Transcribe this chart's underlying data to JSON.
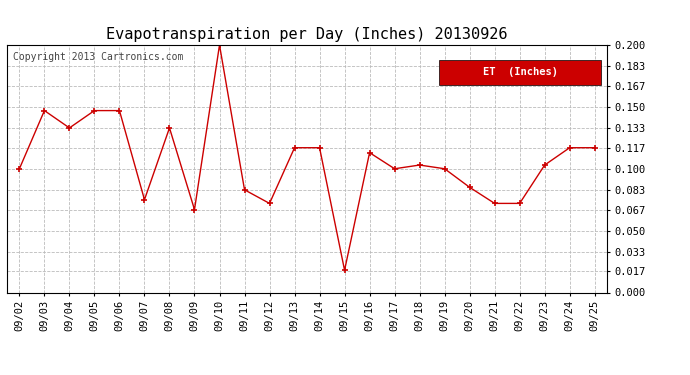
{
  "title": "Evapotranspiration per Day (Inches) 20130926",
  "copyright_text": "Copyright 2013 Cartronics.com",
  "legend_label": "ET  (Inches)",
  "legend_bg": "#cc0000",
  "legend_fg": "#ffffff",
  "x_labels": [
    "09/02",
    "09/03",
    "09/04",
    "09/05",
    "09/06",
    "09/07",
    "09/08",
    "09/09",
    "09/10",
    "09/11",
    "09/12",
    "09/13",
    "09/14",
    "09/15",
    "09/16",
    "09/17",
    "09/18",
    "09/19",
    "09/20",
    "09/21",
    "09/22",
    "09/23",
    "09/24",
    "09/25"
  ],
  "y_values": [
    0.1,
    0.147,
    0.133,
    0.147,
    0.147,
    0.075,
    0.133,
    0.067,
    0.2,
    0.083,
    0.072,
    0.117,
    0.117,
    0.018,
    0.113,
    0.1,
    0.103,
    0.1,
    0.085,
    0.072,
    0.072,
    0.103,
    0.117,
    0.117
  ],
  "y_ticks": [
    0.0,
    0.017,
    0.033,
    0.05,
    0.067,
    0.083,
    0.1,
    0.117,
    0.133,
    0.15,
    0.167,
    0.183,
    0.2
  ],
  "line_color": "#cc0000",
  "marker": "+",
  "marker_size": 5,
  "line_width": 1.0,
  "bg_color": "#ffffff",
  "plot_bg_color": "#ffffff",
  "grid_color": "#bbbbbb",
  "grid_style": "--",
  "title_fontsize": 11,
  "tick_fontsize": 7.5,
  "copyright_fontsize": 7,
  "border_color": "#000000"
}
